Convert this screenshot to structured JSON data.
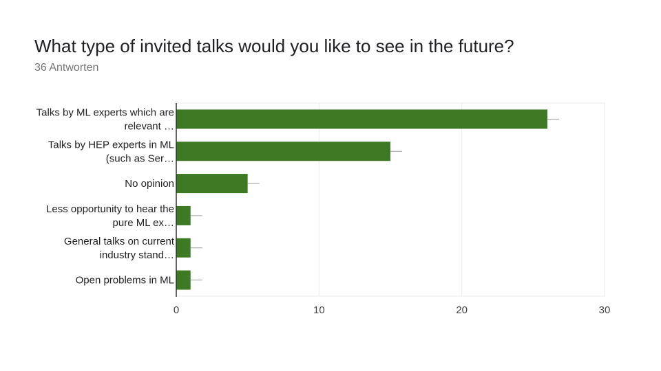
{
  "header": {
    "title": "What type of invited talks would you like to see in the future?",
    "subtitle": "36 Antworten"
  },
  "colors": {
    "bar": "#3d7a23",
    "whisker": "#9e9e9e",
    "grid": "#ebebeb",
    "axis": "#333333"
  },
  "chart_data": {
    "type": "bar",
    "orientation": "horizontal",
    "title": "What type of invited talks would you like to see in the future?",
    "subtitle": "36 Antworten",
    "categories": [
      [
        "Talks by ML experts which are",
        "relevant …"
      ],
      [
        "Talks by HEP experts in ML",
        "(such as Ser…"
      ],
      [
        "No opinion"
      ],
      [
        "Less opportunity to hear the",
        "pure ML ex…"
      ],
      [
        "General talks on current",
        "industry stand…"
      ],
      [
        "Open problems in ML"
      ]
    ],
    "values": [
      26,
      15,
      5,
      1,
      1,
      1
    ],
    "xlim": [
      0,
      30
    ],
    "xticks": [
      0,
      10,
      20,
      30
    ],
    "grid": true,
    "legend": "none"
  }
}
